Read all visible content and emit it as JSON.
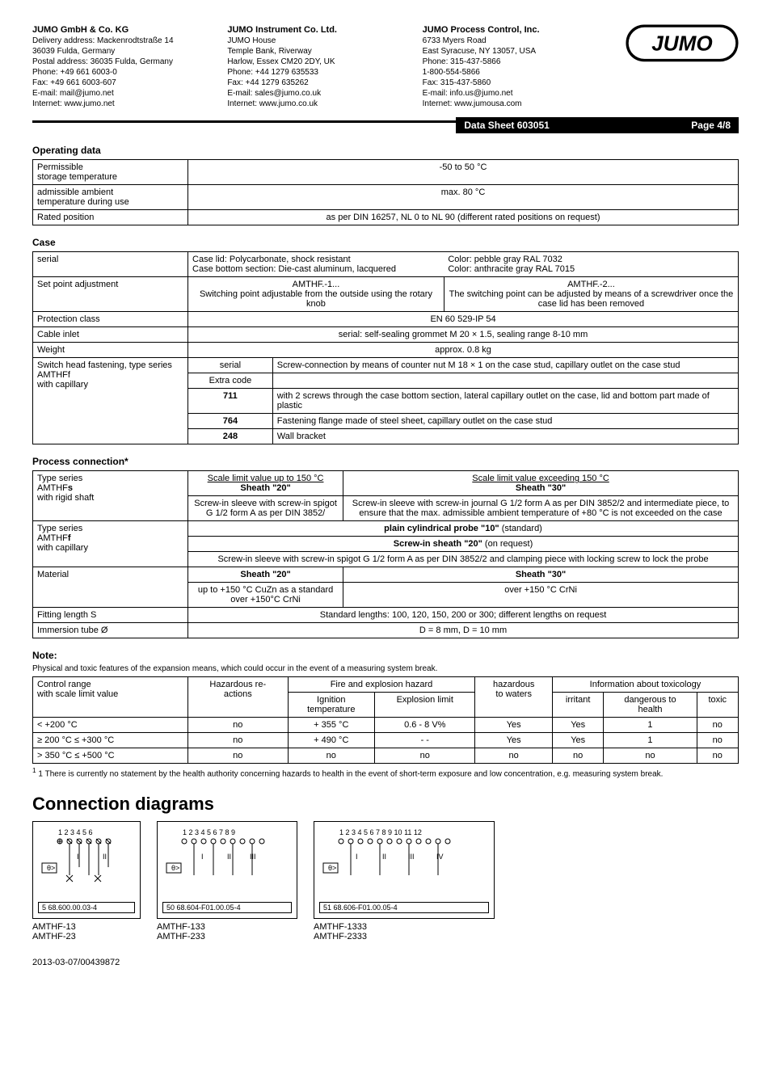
{
  "header": {
    "de": {
      "name": "JUMO GmbH & Co. KG",
      "l1": "Delivery address:  Mackenrodtstraße 14",
      "l2": "                           36039 Fulda, Germany",
      "l3": "Postal address:    36035 Fulda, Germany",
      "l4": "Phone:                +49 661 6003-0",
      "l5": "Fax:                    +49 661 6003-607",
      "l6": "E-mail:                mail@jumo.net",
      "l7": "Internet:              www.jumo.net"
    },
    "uk": {
      "name": "JUMO Instrument Co. Ltd.",
      "l1": "JUMO House",
      "l2": "Temple Bank, Riverway",
      "l3": "Harlow, Essex CM20 2DY, UK",
      "l4": "Phone:   +44 1279 635533",
      "l5": "Fax:       +44 1279 635262",
      "l6": "E-mail:   sales@jumo.co.uk",
      "l7": "Internet: www.jumo.co.uk"
    },
    "us": {
      "name": "JUMO Process Control, Inc.",
      "l1": "6733 Myers Road",
      "l2": "East Syracuse, NY 13057, USA",
      "l3": "Phone:   315-437-5866",
      "l4": "              1-800-554-5866",
      "l5": "Fax:       315-437-5860",
      "l6": "E-mail:   info.us@jumo.net",
      "l7": "Internet: www.jumousa.com"
    }
  },
  "bar": {
    "sheet": "Data Sheet 603051",
    "page": "Page 4/8"
  },
  "sec_op": {
    "title": "Operating data",
    "r1a": "Permissible\nstorage temperature",
    "r1b": "-50 to 50 °C",
    "r2a": "admissible ambient\ntemperature during use",
    "r2b": "max. 80 °C",
    "r3a": "Rated position",
    "r3b": "as per DIN 16257, NL 0 to NL 90 (different rated positions on request)"
  },
  "sec_case": {
    "title": "Case",
    "serial": "serial",
    "serial_l": "Case lid: Polycarbonate, shock resistant\nCase bottom section: Die-cast aluminum, lacquered",
    "serial_r": "Color: pebble gray RAL 7032\nColor: anthracite gray RAL 7015",
    "spa": "Set point adjustment",
    "spa_l_t": "AMTHF.-1...",
    "spa_l_b": "Switching point adjustable from the outside using the rotary knob",
    "spa_r_t": "AMTHF.-2...",
    "spa_r_b": "The switching point can be adjusted by means of a screwdriver once the case lid has been removed",
    "prot_a": "Protection class",
    "prot_b": "EN 60 529-IP 54",
    "cable_a": "Cable inlet",
    "cable_b": "serial: self-sealing grommet M 20 × 1.5, sealing range 8-10 mm",
    "wt_a": "Weight",
    "wt_b": "approx. 0.8 kg",
    "sh_a": "Switch head fastening, type series AMTHFf\nwith capillary",
    "sh_serial": "serial",
    "sh_serial_txt": "Screw-connection by means of counter nut M 18 × 1 on the case stud, capillary outlet on the case stud",
    "sh_extra": "Extra code",
    "sh_711": "711",
    "sh_711_txt": "with 2 screws through the case bottom section, lateral capillary outlet on the case, lid and bottom part made of plastic",
    "sh_764": "764",
    "sh_764_txt": "Fastening flange made of steel sheet, capillary outlet on the case stud",
    "sh_248": "248",
    "sh_248_txt": "Wall bracket"
  },
  "sec_pc": {
    "title": "Process connection*",
    "r1a": "Type series\nAMTHFs\nwith rigid shaft",
    "r1_h1_u": "Scale limit value up to 150 °C",
    "r1_h1_b": "Sheath \"20\"",
    "r1_h2_u": "Scale limit value exceeding 150 °C",
    "r1_h2_b": "Sheath \"30\"",
    "r1_c1": "Screw-in sleeve with screw-in spigot G 1/2 form A as per DIN 3852/",
    "r1_c2": "Screw-in sleeve with screw-in journal G 1/2 form A as per DIN 3852/2 and intermediate piece, to ensure that the max. admissible ambient temperature of +80 °C is not exceeded on the case",
    "r2a": "Type series\nAMTHFf\nwith capillary",
    "r2_l1": "plain cylindrical probe \"10\" (standard)",
    "r2_l2": "Screw-in sheath \"20\" (on request)",
    "r2_l3": "Screw-in sleeve with screw-in spigot G 1/2 form A as per DIN 3852/2 and clamping piece with locking screw to lock the probe",
    "mat_a": "Material",
    "mat_h1": "Sheath \"20\"",
    "mat_h2": "Sheath \"30\"",
    "mat_c1": "up to +150 °C CuZn as a standard\nover +150°C CrNi",
    "mat_c2": "over +150 °C CrNi",
    "fit_a": "Fitting length S",
    "fit_b": "Standard lengths: 100, 120, 150, 200 or 300; different lengths on request",
    "imm_a": "Immersion tube Ø",
    "imm_b": "D = 8 mm, D = 10 mm"
  },
  "note": {
    "title": "Note:",
    "text": "Physical and toxic features of the expansion means, which could occur in the event of a measuring system break."
  },
  "tox": {
    "h_cr": "Control range\nwith scale limit value",
    "h_hz": "Hazardous re-\nactions",
    "h_fe": "Fire and explosion hazard",
    "h_ig": "Ignition\ntemperature",
    "h_ex": "Explosion limit",
    "h_hw": "hazardous\nto waters",
    "h_it": "Information about toxicology",
    "h_ir": "irritant",
    "h_dh": "dangerous to\nhealth",
    "h_tx": "toxic",
    "rows": [
      [
        "< +200 °C",
        "no",
        "+ 355 °C",
        "0.6 - 8 V%",
        "Yes",
        "Yes",
        "1",
        "no"
      ],
      [
        "≥ 200 °C ≤ +300 °C",
        "no",
        "+ 490 °C",
        "- -",
        "Yes",
        "Yes",
        "1",
        "no"
      ],
      [
        "> 350 °C ≤ +500 °C",
        "no",
        "no",
        "no",
        "no",
        "no",
        "no",
        "no"
      ]
    ],
    "foot": "1 There is currently no statement by the health authority concerning hazards to health in the event of short-term exposure and low concentration, e.g. measuring system break."
  },
  "conn": {
    "title": "Connection diagrams",
    "d1": {
      "code": "5   68.600.00.03-4",
      "labels": "AMTHF-13\nAMTHF-23"
    },
    "d2": {
      "code": "50  68.604-F01.00.05-4",
      "labels": "AMTHF-133\nAMTHF-233"
    },
    "d3": {
      "code": "51  68.606-F01.00.05-4",
      "labels": "AMTHF-1333\nAMTHF-2333"
    }
  },
  "footer": "2013-03-07/00439872"
}
